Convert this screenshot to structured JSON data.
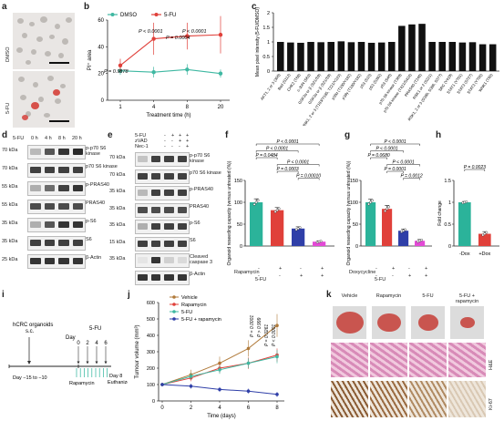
{
  "panel_letters": {
    "a": "a",
    "b": "b",
    "c": "c",
    "d": "d",
    "e": "e",
    "f": "f",
    "g": "g",
    "h": "h",
    "i": "i",
    "j": "j",
    "k": "k"
  },
  "panel_a": {
    "row_labels": [
      "DMSO",
      "5-FU"
    ]
  },
  "panel_b": {
    "legend": [
      "DMSO",
      "5-FU"
    ],
    "colors": {
      "DMSO": "#3fb8a2",
      "5-FU": "#e0403a"
    },
    "pvalues": [
      "P = 0.9878",
      "P < 0.0001",
      "P = 0.0004",
      "P < 0.0001"
    ]
  },
  "panel_d": {
    "treatment": "5-FU",
    "timepoints": [
      "0 h",
      "4 h",
      "8 h",
      "20 h"
    ],
    "ladder": [
      "70 kDa",
      "70 kDa",
      "55 kDa",
      "55 kDa",
      "35 kDa",
      "35 kDa",
      "25 kDa",
      "35 kDa"
    ],
    "bands": [
      "p-p70 S6 kinase",
      "p70 S6 kinase",
      "p-PRAS40",
      "PRAS40",
      "p-S6",
      "S6",
      "β-Actin"
    ]
  },
  "panel_e": {
    "treatments": [
      "5-FU",
      "zVAD",
      "Nec-1"
    ],
    "signs": [
      [
        "-",
        "+",
        "+",
        "+"
      ],
      [
        "-",
        "-",
        "+",
        "+"
      ],
      [
        "-",
        "-",
        "-",
        "+"
      ]
    ],
    "ladder": [
      "70 kDa",
      "70 kDa",
      "35 kDa",
      "35 kDa",
      "35 kDa",
      "15 kDa",
      "35 kDa"
    ],
    "bands": [
      "p-p70 S6 kinase",
      "p70 S6 kinase",
      "p-PRAS40",
      "PRAS40",
      "p-S6",
      "S6",
      "Cleaved caspase 3",
      "β-Actin"
    ]
  },
  "panel_f": {
    "treat_labels": [
      "Rapamycin",
      "5-FU"
    ],
    "signs": [
      [
        "-",
        "+",
        "-",
        "+"
      ],
      [
        "-",
        "-",
        "+",
        "+"
      ]
    ],
    "colors": [
      "#2bb39a",
      "#e0403a",
      "#2f3fa8",
      "#e34ad6"
    ],
    "pvalues": [
      "P < 0.0001",
      "P < 0.0001",
      "P = 0.0484",
      "P < 0.0001",
      "P = 0.0003",
      "P = 0.00010"
    ]
  },
  "panel_g": {
    "treat_labels": [
      "Doxycycline",
      "5-FU"
    ],
    "signs": [
      [
        "-",
        "+",
        "-",
        "+"
      ],
      [
        "-",
        "-",
        "+",
        "+"
      ]
    ],
    "colors": [
      "#2bb39a",
      "#e0403a",
      "#2f3fa8",
      "#e34ad6"
    ],
    "pvalues": [
      "P < 0.0001",
      "P < 0.0001",
      "P = 0.0680",
      "P < 0.0001",
      "P = 0.0001",
      "P = 0.0012"
    ]
  },
  "panel_h": {
    "colors": [
      "#2bb39a",
      "#e0403a"
    ],
    "pvalues": [
      "P = 0.0023"
    ]
  },
  "panel_i": {
    "model": "hCRC organoids\ns.c.",
    "days_top": [
      "Day",
      "0",
      "2",
      "4",
      "6"
    ],
    "treatment_top": "5-FU",
    "range_label": "Day −15 to −10",
    "drug_label": "Rapamycin",
    "end_label": "Day 8\nEuthanize"
  },
  "panel_j": {
    "legend": [
      "Vehicle",
      "Rapamycin",
      "5-FU",
      "5-FU + rapamycin"
    ],
    "colors": [
      "#b07a3a",
      "#e0403a",
      "#3fb8a2",
      "#2f3fa8"
    ],
    "pvalues": [
      "P = 0.0001",
      "P > 0.999",
      "P = 0.0261",
      "P < 0.0001"
    ]
  },
  "panel_k": {
    "columns": [
      "Vehicle",
      "Rapamycin",
      "5-FU",
      "5-FU +\nrapamycin"
    ],
    "rows": [
      "H&E",
      "Ki-67"
    ]
  },
  "chart_data": [
    {
      "panel": "b",
      "type": "line",
      "ylabel": "PI⁺ area",
      "xlabel": "Treatment time (h)",
      "categories": [
        "1",
        "4",
        "8",
        "20"
      ],
      "ylim": [
        0,
        60
      ],
      "yticks": [
        0,
        20,
        40,
        60
      ],
      "series": [
        {
          "name": "DMSO",
          "values": [
            22,
            21,
            23,
            20
          ],
          "err": [
            3,
            4,
            4,
            3
          ]
        },
        {
          "name": "5-FU",
          "values": [
            26,
            46,
            48,
            49
          ],
          "err": [
            5,
            12,
            10,
            14
          ]
        }
      ]
    },
    {
      "panel": "c",
      "type": "bar",
      "ylabel": "Mean pixel intensity (5-FU/DMSO)",
      "ylim": [
        0,
        2
      ],
      "yticks": [
        0,
        0.5,
        1,
        1.5,
        2
      ],
      "categories": [
        "AKT1, 2 or 3 (308)",
        "Bad (S112)",
        "CHK2 (T68)",
        "c-JUN (S63)",
        "GSK3α or β (S21/S9)",
        "GSK3α or β (S21/S9)",
        "JNK1, 2 or 3 (T183/Y185, T221/Y223)",
        "p38α (T180/Y182)",
        "p38γ (T180/Y182)",
        "p53 (S15)",
        "p53 (S392)",
        "p53 (S46)",
        "p70 S6 kinase (T389)",
        "p70 S6 kinase (T421/S424)",
        "PRAS40 (T246)",
        "RSK1 or 2 (S221)",
        "RSK1, 2 or 3 (S380, S386, S377)",
        "SRC (Y419)",
        "STAT1 (Y701)",
        "STAT3 (S727)",
        "STAT3 (Y705)",
        "WNK1 (T60)"
      ],
      "values": [
        1.0,
        0.98,
        0.97,
        1.0,
        0.99,
        1.0,
        1.02,
        0.99,
        1.0,
        0.97,
        0.98,
        1.0,
        1.55,
        1.6,
        1.62,
        1.0,
        1.0,
        1.0,
        0.98,
        0.99,
        0.92,
        0.92
      ]
    },
    {
      "panel": "f",
      "type": "bar",
      "ylabel": "Organoid reseeding capacity (versus untreated (%))",
      "ylim": [
        0,
        150
      ],
      "yticks": [
        0,
        50,
        100,
        150
      ],
      "categories": [
        "-/-",
        "+/-",
        "-/+",
        "+/+"
      ],
      "values": [
        100,
        82,
        40,
        10
      ],
      "err": [
        8,
        6,
        4,
        2
      ]
    },
    {
      "panel": "g",
      "type": "bar",
      "ylabel": "Organoid reseeding capacity (versus untreated (%))",
      "ylim": [
        0,
        150
      ],
      "yticks": [
        0,
        50,
        100,
        150
      ],
      "categories": [
        "-/-",
        "+/-",
        "-/+",
        "+/+"
      ],
      "values": [
        100,
        85,
        35,
        12
      ],
      "err": [
        7,
        8,
        4,
        3
      ]
    },
    {
      "panel": "h",
      "type": "bar",
      "ylabel": "Fold change",
      "ylim": [
        0,
        1.5
      ],
      "yticks": [
        0,
        0.5,
        1.0,
        1.5
      ],
      "categories": [
        "-Dox",
        "+Dox"
      ],
      "values": [
        1.0,
        0.28
      ],
      "err": [
        0.02,
        0.05
      ]
    },
    {
      "panel": "j",
      "type": "line",
      "ylabel": "Tumour volume (mm³)",
      "xlabel": "Time (days)",
      "x": [
        0,
        2,
        4,
        6,
        8
      ],
      "ylim": [
        0,
        600
      ],
      "yticks": [
        0,
        100,
        200,
        300,
        400,
        500,
        600
      ],
      "series": [
        {
          "name": "Vehicle",
          "values": [
            100,
            160,
            230,
            320,
            460
          ],
          "err": [
            10,
            30,
            40,
            50,
            70
          ]
        },
        {
          "name": "Rapamycin",
          "values": [
            100,
            140,
            200,
            230,
            280
          ],
          "err": [
            10,
            20,
            30,
            35,
            40
          ]
        },
        {
          "name": "5-FU",
          "values": [
            100,
            150,
            190,
            230,
            270
          ],
          "err": [
            10,
            20,
            25,
            30,
            40
          ]
        },
        {
          "name": "5-FU + rapamycin",
          "values": [
            100,
            90,
            70,
            60,
            40
          ],
          "err": [
            10,
            15,
            15,
            15,
            15
          ]
        }
      ]
    }
  ]
}
